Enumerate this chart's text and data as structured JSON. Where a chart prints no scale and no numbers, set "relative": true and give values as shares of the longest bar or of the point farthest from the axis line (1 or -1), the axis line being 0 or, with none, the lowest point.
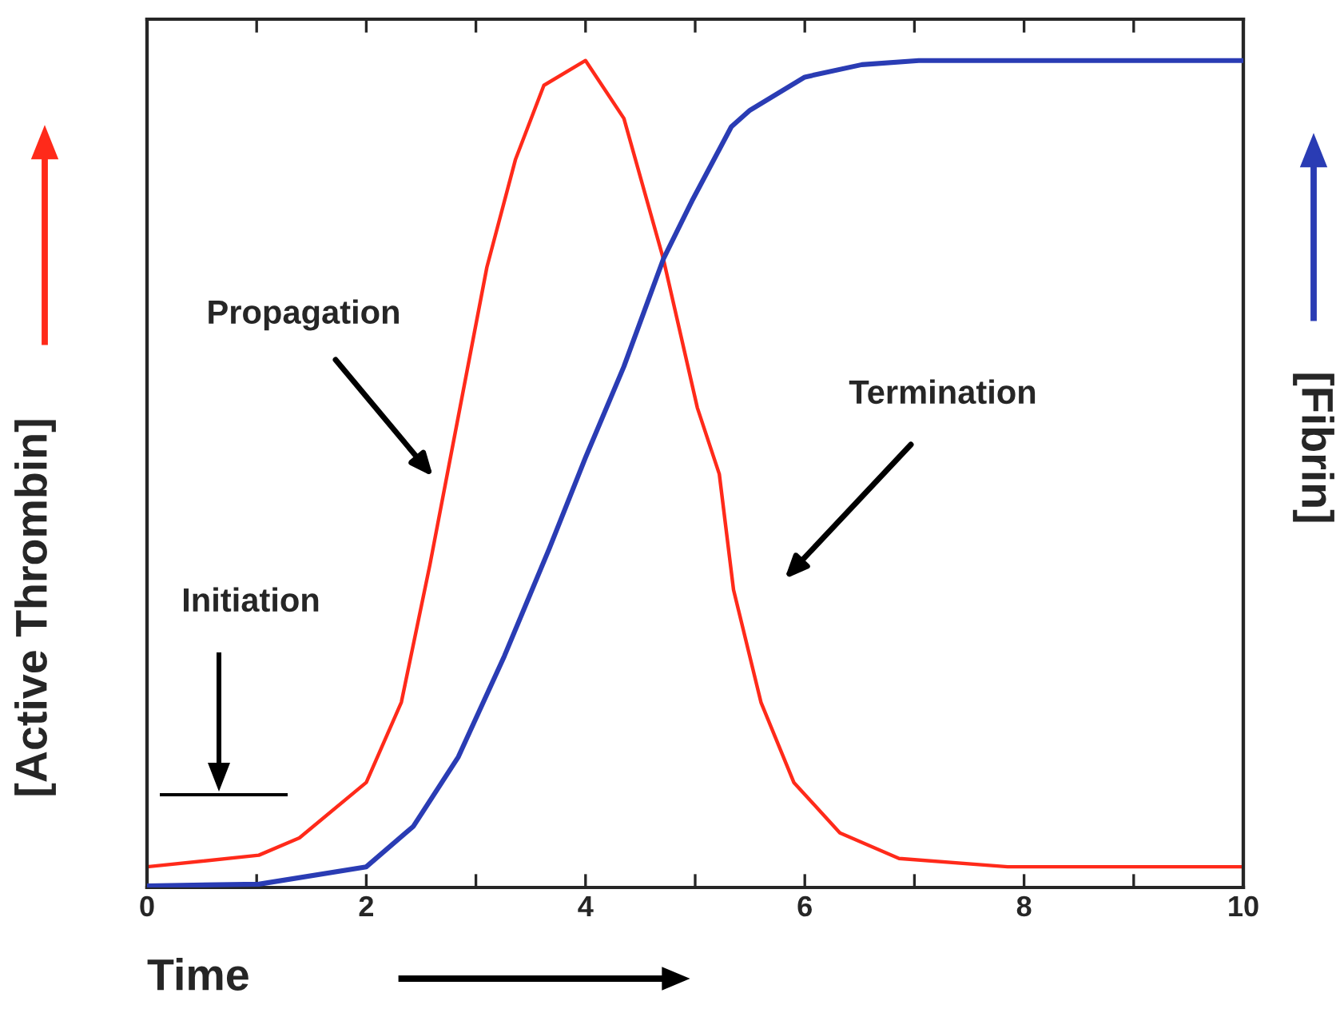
{
  "chart_data": {
    "type": "line",
    "relative": true,
    "xlabel": "Time",
    "ylabel": "[Active Thrombin]",
    "y2label": "[Fibrin]",
    "xlim": [
      0,
      10
    ],
    "xticks": [
      0,
      {
        "value": 1,
        "label": null
      },
      2,
      {
        "value": 3,
        "label": null
      },
      4,
      {
        "value": 5,
        "label": null
      },
      6,
      {
        "value": 7,
        "label": null
      },
      8,
      {
        "value": 9,
        "label": null
      },
      10
    ],
    "series": [
      {
        "color": "#ff2a1a",
        "x": [
          0,
          1.02,
          1.39,
          2,
          2.32,
          2.58,
          2.84,
          3.1,
          3.36,
          3.62,
          4,
          4.35,
          4.71,
          5.02,
          5.22,
          5.35,
          5.6,
          5.9,
          6.32,
          6.86,
          7.85,
          10
        ],
        "values": [
          0.025,
          0.039,
          0.06,
          0.127,
          0.224,
          0.39,
          0.57,
          0.75,
          0.88,
          0.97,
          1.0,
          0.93,
          0.76,
          0.58,
          0.5,
          0.36,
          0.224,
          0.127,
          0.066,
          0.035,
          0.025,
          0.025
        ]
      },
      {
        "color": "#2a3cb4",
        "axis": "y2",
        "x": [
          0,
          1.02,
          2,
          2.43,
          2.84,
          3.26,
          3.67,
          4,
          4.35,
          4.71,
          4.97,
          5.33,
          5.5,
          6.0,
          6.52,
          7.04,
          10
        ],
        "values": [
          0.002,
          0.004,
          0.025,
          0.074,
          0.158,
          0.28,
          0.41,
          0.52,
          0.63,
          0.76,
          0.83,
          0.92,
          0.94,
          0.98,
          0.995,
          1.0,
          1.0
        ]
      }
    ],
    "annotations": [
      "Initiation",
      "Propagation",
      "Termination"
    ],
    "grid": false,
    "marker": "none",
    "line_style": "solid"
  }
}
